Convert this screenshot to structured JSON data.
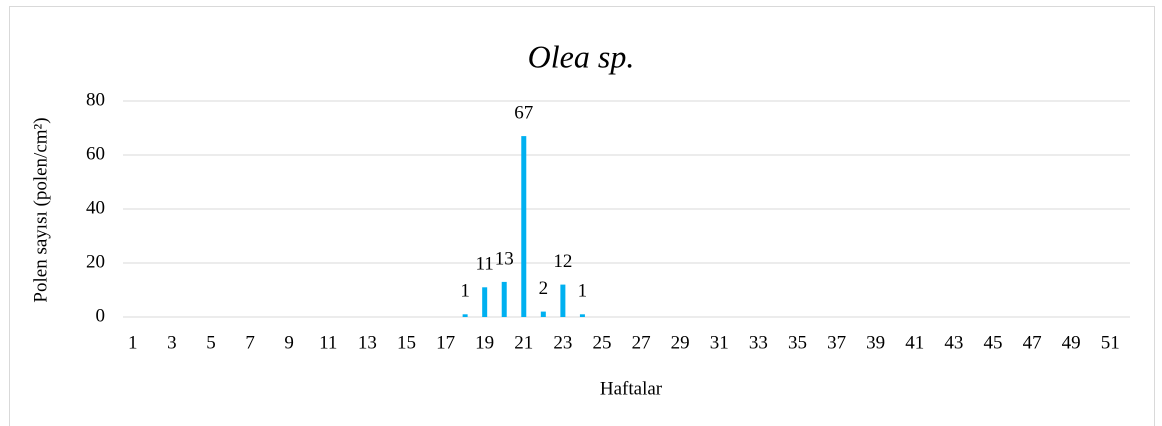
{
  "chart_data": {
    "type": "bar",
    "title": "Olea sp.",
    "x_label": "Haftalar",
    "y_label": "Polen sayısı (polen/cm²)",
    "categories": [
      "1",
      null,
      "3",
      null,
      "5",
      null,
      "7",
      null,
      "9",
      null,
      "11",
      null,
      "13",
      null,
      "15",
      null,
      "17",
      null,
      "19",
      null,
      "21",
      null,
      "23",
      null,
      "25",
      null,
      "27",
      null,
      "29",
      null,
      "31",
      null,
      "33",
      null,
      "35",
      null,
      "37",
      null,
      "39",
      null,
      "41",
      null,
      "43",
      null,
      "45",
      null,
      "47",
      null,
      "49",
      null,
      "51",
      null
    ],
    "values": [
      0,
      0,
      0,
      0,
      0,
      0,
      0,
      0,
      0,
      0,
      0,
      0,
      0,
      0,
      0,
      0,
      0,
      1,
      11,
      13,
      67,
      2,
      12,
      1,
      0,
      0,
      0,
      0,
      0,
      0,
      0,
      0,
      0,
      0,
      0,
      0,
      0,
      0,
      0,
      0,
      0,
      0,
      0,
      0,
      0,
      0,
      0,
      0,
      0,
      0,
      0,
      0
    ],
    "color": "#00b0f0",
    "ylim": [
      0,
      80
    ],
    "yticks": [
      0,
      20,
      40,
      60,
      80
    ],
    "grid": true
  }
}
